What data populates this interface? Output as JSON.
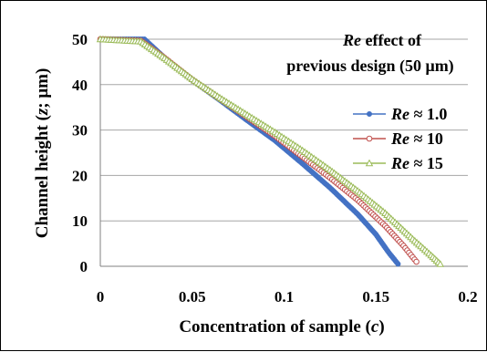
{
  "chart_data": {
    "type": "scatter",
    "title": "",
    "annotation": {
      "line1_italic": "Re",
      "line1_rest": " effect of",
      "line2": "previous design (50 μm)"
    },
    "xlabel": {
      "prefix": "Concentration of sample (",
      "var": "c",
      "suffix": ")"
    },
    "ylabel": {
      "prefix": "Channel height (",
      "var": "z",
      "suffix": "; μm)"
    },
    "xlim": [
      0,
      0.2
    ],
    "ylim": [
      0,
      50
    ],
    "xticks": [
      "0",
      "0.05",
      "0.1",
      "0.15",
      "0.2"
    ],
    "yticks": [
      "0",
      "10",
      "20",
      "30",
      "40",
      "50"
    ],
    "grid": "horizontal",
    "legend_position": "right",
    "series": [
      {
        "name": "Re ≈ 1.0",
        "name_italic": "Re",
        "name_rest": " ≈ 1.0",
        "color": "#4472C4",
        "marker": "circle",
        "points": [
          [
            0,
            50
          ],
          [
            0.024,
            50
          ],
          [
            0.035,
            45.9
          ],
          [
            0.05,
            41
          ],
          [
            0.065,
            36.6
          ],
          [
            0.08,
            32.1
          ],
          [
            0.095,
            27.7
          ],
          [
            0.11,
            22.6
          ],
          [
            0.125,
            17.3
          ],
          [
            0.14,
            11.5
          ],
          [
            0.15,
            7.0
          ],
          [
            0.157,
            3.0
          ],
          [
            0.162,
            0.5
          ]
        ]
      },
      {
        "name": "Re ≈ 10",
        "name_italic": "Re",
        "name_rest": " ≈ 10",
        "color": "#C0504D",
        "marker": "circle-open",
        "points": [
          [
            0,
            50
          ],
          [
            0.022,
            49.7
          ],
          [
            0.035,
            45.9
          ],
          [
            0.05,
            41.1
          ],
          [
            0.065,
            36.9
          ],
          [
            0.08,
            32.8
          ],
          [
            0.095,
            28.7
          ],
          [
            0.11,
            24.1
          ],
          [
            0.125,
            19.5
          ],
          [
            0.14,
            14.6
          ],
          [
            0.155,
            8.9
          ],
          [
            0.165,
            4.5
          ],
          [
            0.172,
            1.0
          ]
        ]
      },
      {
        "name": "Re ≈ 15",
        "name_italic": "Re",
        "name_rest": " ≈ 15",
        "color": "#9BBB59",
        "marker": "triangle",
        "points": [
          [
            0,
            50
          ],
          [
            0.022,
            49.5
          ],
          [
            0.035,
            45.8
          ],
          [
            0.05,
            41.2
          ],
          [
            0.065,
            37.1
          ],
          [
            0.08,
            33.3
          ],
          [
            0.095,
            29.5
          ],
          [
            0.11,
            25.5
          ],
          [
            0.125,
            21.2
          ],
          [
            0.14,
            16.6
          ],
          [
            0.155,
            11.7
          ],
          [
            0.17,
            6.0
          ],
          [
            0.18,
            2.4
          ],
          [
            0.185,
            0.5
          ]
        ]
      }
    ]
  }
}
